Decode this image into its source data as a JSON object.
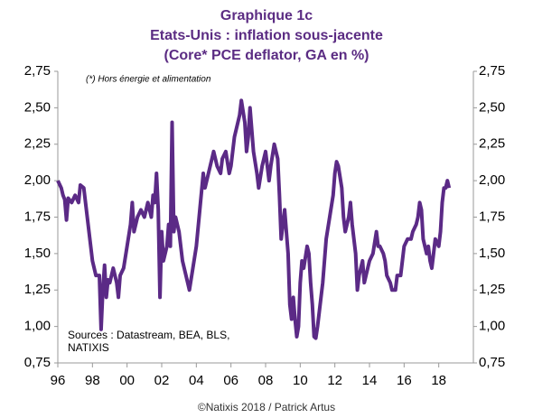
{
  "chart_data": {
    "type": "line",
    "title": "Graphique 1c",
    "subtitle": [
      "Etats-Unis : inflation sous-jacente",
      "(Core* PCE deflator, GA en %)"
    ],
    "note": "(*) Hors énergie et alimentation",
    "sources": [
      "Sources : Datastream, BEA, BLS,",
      "NATIXIS"
    ],
    "footer": "©Natixis 2018 / Patrick Artus",
    "xlim": [
      1996,
      2020
    ],
    "xticks": [
      {
        "value": 1996,
        "label": "96"
      },
      {
        "value": 1998,
        "label": "98"
      },
      {
        "value": 2000,
        "label": "00"
      },
      {
        "value": 2002,
        "label": "02"
      },
      {
        "value": 2004,
        "label": "04"
      },
      {
        "value": 2006,
        "label": "06"
      },
      {
        "value": 2008,
        "label": "08"
      },
      {
        "value": 2010,
        "label": "10"
      },
      {
        "value": 2012,
        "label": "12"
      },
      {
        "value": 2014,
        "label": "14"
      },
      {
        "value": 2016,
        "label": "16"
      },
      {
        "value": 2018,
        "label": "18"
      }
    ],
    "ylim": [
      0.75,
      2.75
    ],
    "yticks": [
      {
        "value": 0.75,
        "label": "0,75"
      },
      {
        "value": 1,
        "label": "1,00"
      },
      {
        "value": 1.25,
        "label": "1,25"
      },
      {
        "value": 1.5,
        "label": "1,50"
      },
      {
        "value": 1.75,
        "label": "1,75"
      },
      {
        "value": 2,
        "label": "2,00"
      },
      {
        "value": 2.25,
        "label": "2,25"
      },
      {
        "value": 2.5,
        "label": "2,50"
      },
      {
        "value": 2.75,
        "label": "2,75"
      }
    ],
    "y2lim": [
      0.75,
      2.75
    ],
    "y2ticks": [
      {
        "value": 0.75,
        "label": "0,75"
      },
      {
        "value": 1,
        "label": "1,00"
      },
      {
        "value": 1.25,
        "label": "1,25"
      },
      {
        "value": 1.5,
        "label": "1,50"
      },
      {
        "value": 1.75,
        "label": "1,75"
      },
      {
        "value": 2,
        "label": "2,00"
      },
      {
        "value": 2.25,
        "label": "2,25"
      },
      {
        "value": 2.5,
        "label": "2,50"
      },
      {
        "value": 2.75,
        "label": "2,75"
      }
    ],
    "color": "#5b2a86",
    "x": [
      1996.0,
      1996.2,
      1996.3,
      1996.4,
      1996.5,
      1996.6,
      1996.8,
      1997.0,
      1997.2,
      1997.3,
      1997.5,
      1997.7,
      1997.9,
      1998.0,
      1998.2,
      1998.4,
      1998.5,
      1998.6,
      1998.7,
      1998.8,
      1998.9,
      1999.0,
      1999.2,
      1999.4,
      1999.5,
      1999.6,
      1999.8,
      2000.0,
      2000.2,
      2000.3,
      2000.4,
      2000.6,
      2000.8,
      2001.0,
      2001.2,
      2001.4,
      2001.5,
      2001.6,
      2001.7,
      2001.8,
      2001.9,
      2002.0,
      2002.1,
      2002.3,
      2002.4,
      2002.5,
      2002.6,
      2002.7,
      2002.8,
      2003.0,
      2003.2,
      2003.4,
      2003.5,
      2003.6,
      2003.8,
      2004.0,
      2004.2,
      2004.4,
      2004.5,
      2004.7,
      2004.9,
      2005.0,
      2005.2,
      2005.4,
      2005.5,
      2005.7,
      2005.9,
      2006.0,
      2006.2,
      2006.4,
      2006.5,
      2006.6,
      2006.8,
      2006.9,
      2007.0,
      2007.1,
      2007.3,
      2007.5,
      2007.6,
      2007.8,
      2008.0,
      2008.2,
      2008.3,
      2008.5,
      2008.7,
      2008.8,
      2008.9,
      2009.0,
      2009.1,
      2009.3,
      2009.4,
      2009.5,
      2009.6,
      2009.7,
      2009.8,
      2009.9,
      2010.0,
      2010.1,
      2010.2,
      2010.4,
      2010.5,
      2010.6,
      2010.7,
      2010.8,
      2010.9,
      2011.0,
      2011.1,
      2011.3,
      2011.5,
      2011.7,
      2011.9,
      2012.0,
      2012.1,
      2012.2,
      2012.4,
      2012.5,
      2012.6,
      2012.8,
      2012.9,
      2013.0,
      2013.2,
      2013.3,
      2013.4,
      2013.6,
      2013.7,
      2013.8,
      2014.0,
      2014.2,
      2014.4,
      2014.5,
      2014.6,
      2014.8,
      2014.9,
      2015.0,
      2015.2,
      2015.3,
      2015.5,
      2015.6,
      2015.8,
      2016.0,
      2016.2,
      2016.4,
      2016.5,
      2016.7,
      2016.8,
      2016.9,
      2017.0,
      2017.1,
      2017.3,
      2017.4,
      2017.5,
      2017.6,
      2017.7,
      2017.8,
      2018.0,
      2018.1,
      2018.2,
      2018.3,
      2018.4,
      2018.5,
      2018.6
    ],
    "values": [
      2.0,
      1.95,
      1.9,
      1.87,
      1.73,
      1.88,
      1.85,
      1.9,
      1.85,
      1.97,
      1.95,
      1.75,
      1.55,
      1.45,
      1.35,
      1.35,
      0.98,
      1.25,
      1.42,
      1.2,
      1.32,
      1.3,
      1.4,
      1.3,
      1.2,
      1.35,
      1.4,
      1.55,
      1.7,
      1.85,
      1.65,
      1.75,
      1.8,
      1.75,
      1.85,
      1.75,
      1.9,
      1.85,
      2.05,
      1.8,
      1.2,
      1.65,
      1.45,
      1.55,
      1.7,
      1.55,
      2.4,
      1.65,
      1.75,
      1.65,
      1.45,
      1.35,
      1.3,
      1.25,
      1.4,
      1.55,
      1.8,
      2.05,
      1.95,
      2.05,
      2.15,
      2.2,
      2.1,
      2.05,
      2.15,
      2.2,
      2.05,
      2.1,
      2.3,
      2.4,
      2.45,
      2.55,
      2.4,
      2.2,
      2.3,
      2.5,
      2.2,
      2.05,
      1.95,
      2.1,
      2.2,
      2.0,
      2.1,
      2.25,
      2.15,
      1.9,
      1.6,
      1.7,
      1.8,
      1.5,
      1.15,
      1.05,
      1.2,
      1.05,
      0.93,
      1.0,
      1.3,
      1.45,
      1.4,
      1.55,
      1.5,
      1.3,
      1.15,
      0.93,
      0.92,
      1.0,
      1.1,
      1.3,
      1.6,
      1.75,
      1.9,
      2.05,
      2.13,
      2.1,
      1.95,
      1.75,
      1.65,
      1.75,
      1.85,
      1.7,
      1.5,
      1.25,
      1.35,
      1.45,
      1.3,
      1.35,
      1.45,
      1.5,
      1.65,
      1.55,
      1.55,
      1.5,
      1.45,
      1.35,
      1.3,
      1.25,
      1.25,
      1.35,
      1.35,
      1.55,
      1.6,
      1.6,
      1.65,
      1.7,
      1.75,
      1.85,
      1.8,
      1.6,
      1.5,
      1.55,
      1.45,
      1.4,
      1.5,
      1.6,
      1.55,
      1.65,
      1.85,
      1.95,
      1.95,
      2.0,
      1.95
    ]
  }
}
